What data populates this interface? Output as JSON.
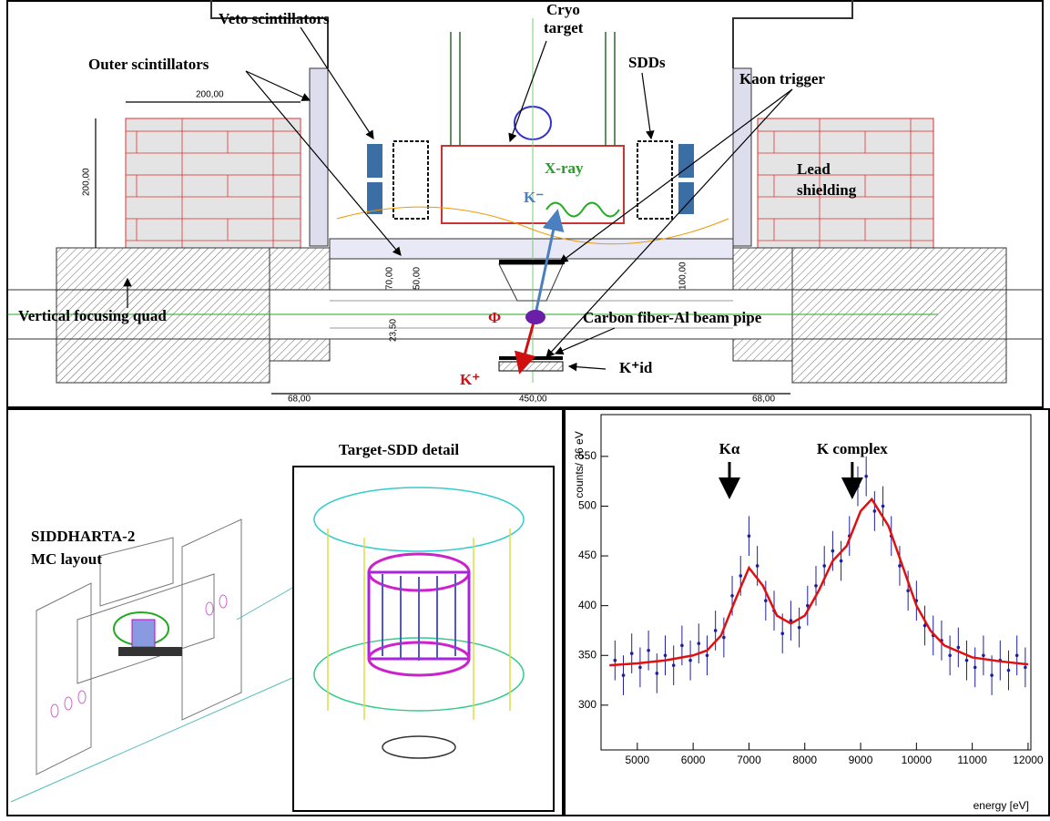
{
  "top": {
    "labels": {
      "veto": "Veto scintillators",
      "outer": "Outer scintillators",
      "cryo1": "Cryo",
      "cryo2": "target",
      "sdds": "SDDs",
      "kaon": "Kaon trigger",
      "xray": "X-ray",
      "kminus": "K⁻",
      "lead1": "Lead",
      "lead2": "shielding",
      "quad": "Vertical focusing quad",
      "phi": "Φ",
      "pipe": "Carbon fiber-Al beam pipe",
      "kplus": "K⁺",
      "kid": "K⁺id"
    },
    "dimensions": {
      "top_width": "200,00",
      "side_height": "200,00",
      "d70": "70,00",
      "d50": "50,00",
      "d100": "100,00",
      "d23": "23,50",
      "left68": "68,00",
      "center450": "450,00",
      "right68": "68,00"
    }
  },
  "bottom_left": {
    "title1": "SIDDHARTA-2",
    "title2": "MC layout",
    "detail": "Target-SDD detail"
  },
  "chart_data": {
    "type": "spectrum",
    "xlabel": "energy [eV]",
    "ylabel": "counts/ 36 eV",
    "annotations": [
      "Kα",
      "K complex"
    ],
    "annotation_x": [
      6650,
      8850
    ],
    "xlim": [
      4350,
      12050
    ],
    "ylim": [
      255,
      592
    ],
    "xticks": [
      5000,
      6000,
      7000,
      8000,
      9000,
      10000,
      11000,
      12000
    ],
    "yticks": [
      300,
      350,
      400,
      450,
      500,
      550
    ],
    "data": {
      "color": "#1f1f9e",
      "error": 20,
      "x": [
        4600,
        4750,
        4900,
        5050,
        5200,
        5350,
        5500,
        5650,
        5800,
        5950,
        6100,
        6250,
        6400,
        6550,
        6700,
        6850,
        7000,
        7150,
        7300,
        7450,
        7600,
        7750,
        7900,
        8050,
        8200,
        8350,
        8500,
        8650,
        8800,
        8950,
        9100,
        9250,
        9400,
        9550,
        9700,
        9850,
        10000,
        10150,
        10300,
        10450,
        10600,
        10750,
        10900,
        11050,
        11200,
        11350,
        11500,
        11650,
        11800,
        11950
      ],
      "values": [
        345,
        330,
        352,
        338,
        355,
        332,
        350,
        340,
        360,
        345,
        362,
        350,
        375,
        368,
        410,
        430,
        470,
        440,
        405,
        395,
        372,
        385,
        378,
        400,
        420,
        440,
        455,
        445,
        470,
        520,
        530,
        495,
        500,
        470,
        440,
        415,
        405,
        380,
        370,
        365,
        350,
        358,
        345,
        338,
        350,
        330,
        345,
        335,
        350,
        338
      ]
    },
    "fit": {
      "color": "#e01010",
      "x": [
        4500,
        5000,
        5500,
        6000,
        6250,
        6500,
        6750,
        7000,
        7250,
        7500,
        7750,
        8000,
        8250,
        8500,
        8750,
        9000,
        9200,
        9500,
        9750,
        10000,
        10250,
        10500,
        11000,
        11500,
        12000
      ],
      "values": [
        340,
        342,
        345,
        350,
        355,
        370,
        405,
        438,
        420,
        390,
        382,
        390,
        415,
        445,
        460,
        495,
        507,
        480,
        440,
        400,
        375,
        360,
        348,
        344,
        341
      ]
    }
  }
}
